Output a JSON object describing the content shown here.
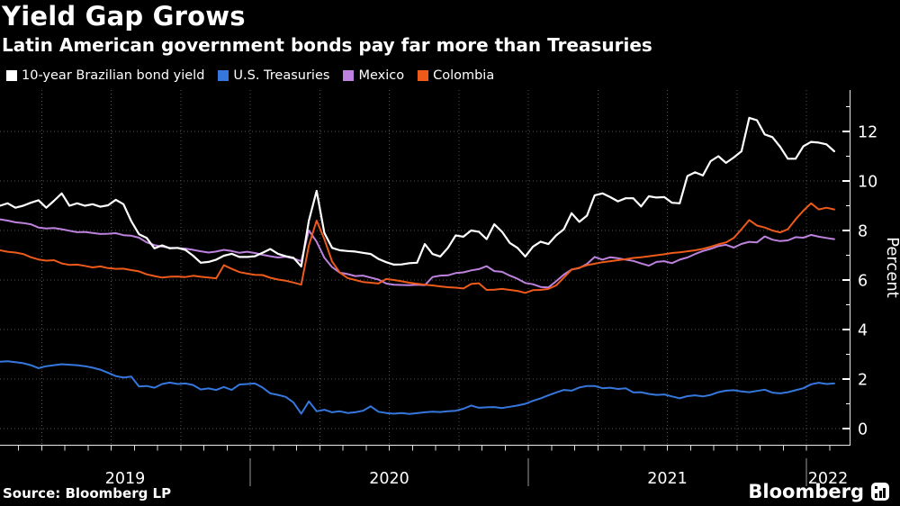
{
  "header": {
    "title": "Yield Gap Grows",
    "subtitle": "Latin American government bonds pay far more than Treasuries"
  },
  "legend": [
    {
      "label": "10-year Brazilian bond yield",
      "color": "#ffffff"
    },
    {
      "label": "U.S. Treasuries",
      "color": "#3677dd"
    },
    {
      "label": "Mexico",
      "color": "#bd82dd"
    },
    {
      "label": "Colombia",
      "color": "#ed5a1a"
    }
  ],
  "footer": {
    "source": "Source: Bloomberg LP",
    "brand": "Bloomberg"
  },
  "chart_data": {
    "type": "line",
    "title": "Yield Gap Grows",
    "subtitle": "Latin American government bonds pay far more than Treasuries",
    "ylabel": "Percent",
    "yticks": [
      0,
      2,
      4,
      6,
      8,
      10,
      12
    ],
    "ylim": [
      -0.7,
      13.7
    ],
    "grid": "dotted",
    "grid_color": "#555555",
    "legend_position": "top",
    "xtick_labels": [
      "2019",
      "2020",
      "2021",
      "2022"
    ],
    "x_start": 2019.1,
    "x_step": 0.027778,
    "x_end": 2022.1,
    "series": [
      {
        "name": "10-year Brazilian bond yield",
        "color": "#ffffff",
        "width": 2.2,
        "values": [
          9.0,
          9.1,
          8.92,
          9.0,
          9.12,
          9.22,
          8.92,
          9.2,
          9.5,
          9.0,
          9.1,
          9.0,
          9.06,
          8.96,
          9.02,
          9.24,
          9.06,
          8.38,
          7.85,
          7.7,
          7.28,
          7.4,
          7.28,
          7.3,
          7.22,
          6.98,
          6.7,
          6.73,
          6.82,
          6.98,
          7.06,
          6.93,
          6.93,
          6.96,
          7.1,
          7.25,
          7.06,
          6.96,
          6.9,
          6.55,
          8.4,
          9.6,
          7.9,
          7.3,
          7.2,
          7.17,
          7.15,
          7.1,
          7.05,
          6.85,
          6.72,
          6.62,
          6.63,
          6.68,
          6.7,
          7.45,
          7.05,
          6.95,
          7.3,
          7.8,
          7.75,
          8.0,
          7.95,
          7.65,
          8.25,
          7.95,
          7.5,
          7.3,
          6.95,
          7.35,
          7.55,
          7.45,
          7.8,
          8.05,
          8.7,
          8.35,
          8.6,
          9.42,
          9.5,
          9.35,
          9.18,
          9.3,
          9.3,
          8.97,
          9.38,
          9.33,
          9.35,
          9.12,
          9.1,
          10.2,
          10.35,
          10.22,
          10.8,
          11.0,
          10.73,
          10.95,
          11.2,
          12.55,
          12.45,
          11.88,
          11.77,
          11.38,
          10.9,
          10.9,
          11.4,
          11.58,
          11.55,
          11.48,
          11.2
        ]
      },
      {
        "name": "U.S. Treasuries",
        "color": "#3677dd",
        "width": 2,
        "values": [
          2.7,
          2.72,
          2.68,
          2.64,
          2.56,
          2.44,
          2.52,
          2.56,
          2.6,
          2.58,
          2.56,
          2.52,
          2.46,
          2.38,
          2.25,
          2.12,
          2.06,
          2.1,
          1.7,
          1.72,
          1.65,
          1.8,
          1.86,
          1.8,
          1.82,
          1.76,
          1.58,
          1.62,
          1.56,
          1.68,
          1.56,
          1.78,
          1.8,
          1.82,
          1.66,
          1.42,
          1.36,
          1.28,
          1.05,
          0.6,
          1.1,
          0.7,
          0.76,
          0.66,
          0.7,
          0.63,
          0.66,
          0.72,
          0.9,
          0.68,
          0.63,
          0.6,
          0.63,
          0.59,
          0.62,
          0.66,
          0.68,
          0.67,
          0.7,
          0.72,
          0.8,
          0.93,
          0.84,
          0.86,
          0.87,
          0.83,
          0.88,
          0.93,
          1.0,
          1.12,
          1.22,
          1.34,
          1.46,
          1.56,
          1.53,
          1.66,
          1.72,
          1.72,
          1.63,
          1.65,
          1.6,
          1.63,
          1.46,
          1.47,
          1.4,
          1.36,
          1.38,
          1.3,
          1.22,
          1.31,
          1.34,
          1.3,
          1.36,
          1.47,
          1.53,
          1.55,
          1.5,
          1.47,
          1.52,
          1.57,
          1.45,
          1.42,
          1.47,
          1.55,
          1.63,
          1.79,
          1.85,
          1.8,
          1.82
        ]
      },
      {
        "name": "Mexico",
        "color": "#bd82dd",
        "width": 2,
        "values": [
          8.45,
          8.4,
          8.33,
          8.3,
          8.25,
          8.12,
          8.08,
          8.1,
          8.05,
          7.99,
          7.93,
          7.94,
          7.9,
          7.86,
          7.87,
          7.89,
          7.81,
          7.79,
          7.71,
          7.52,
          7.41,
          7.35,
          7.3,
          7.29,
          7.27,
          7.22,
          7.16,
          7.11,
          7.15,
          7.22,
          7.17,
          7.1,
          7.14,
          7.09,
          7.02,
          6.96,
          6.91,
          6.94,
          6.87,
          6.76,
          8.0,
          7.55,
          6.9,
          6.52,
          6.3,
          6.24,
          6.16,
          6.18,
          6.1,
          6.02,
          5.86,
          5.81,
          5.8,
          5.79,
          5.81,
          5.79,
          6.12,
          6.18,
          6.19,
          6.28,
          6.31,
          6.39,
          6.44,
          6.56,
          6.36,
          6.33,
          6.18,
          6.05,
          5.88,
          5.83,
          5.72,
          5.7,
          5.95,
          6.22,
          6.42,
          6.48,
          6.65,
          6.93,
          6.82,
          6.92,
          6.88,
          6.82,
          6.77,
          6.67,
          6.58,
          6.73,
          6.76,
          6.68,
          6.82,
          6.91,
          7.05,
          7.17,
          7.26,
          7.37,
          7.42,
          7.31,
          7.46,
          7.54,
          7.52,
          7.76,
          7.63,
          7.57,
          7.6,
          7.73,
          7.71,
          7.82,
          7.75,
          7.7,
          7.65
        ]
      },
      {
        "name": "Colombia",
        "color": "#ed5a1a",
        "width": 2,
        "values": [
          7.2,
          7.14,
          7.11,
          7.05,
          6.92,
          6.83,
          6.78,
          6.8,
          6.67,
          6.61,
          6.62,
          6.57,
          6.51,
          6.55,
          6.48,
          6.45,
          6.46,
          6.4,
          6.35,
          6.23,
          6.16,
          6.1,
          6.13,
          6.14,
          6.12,
          6.17,
          6.13,
          6.1,
          6.07,
          6.6,
          6.45,
          6.32,
          6.26,
          6.21,
          6.2,
          6.09,
          6.02,
          5.97,
          5.9,
          5.81,
          7.4,
          8.4,
          7.65,
          6.75,
          6.3,
          6.08,
          6.0,
          5.92,
          5.89,
          5.86,
          6.04,
          6.0,
          5.95,
          5.89,
          5.85,
          5.81,
          5.78,
          5.74,
          5.71,
          5.69,
          5.66,
          5.84,
          5.87,
          5.6,
          5.61,
          5.64,
          5.6,
          5.56,
          5.48,
          5.59,
          5.6,
          5.64,
          5.78,
          6.1,
          6.42,
          6.5,
          6.6,
          6.66,
          6.72,
          6.76,
          6.8,
          6.84,
          6.89,
          6.92,
          6.96,
          7.0,
          7.04,
          7.09,
          7.12,
          7.16,
          7.2,
          7.26,
          7.34,
          7.44,
          7.52,
          7.7,
          8.05,
          8.42,
          8.2,
          8.12,
          8.0,
          7.92,
          8.05,
          8.45,
          8.8,
          9.1,
          8.85,
          8.92,
          8.85
        ]
      }
    ]
  }
}
